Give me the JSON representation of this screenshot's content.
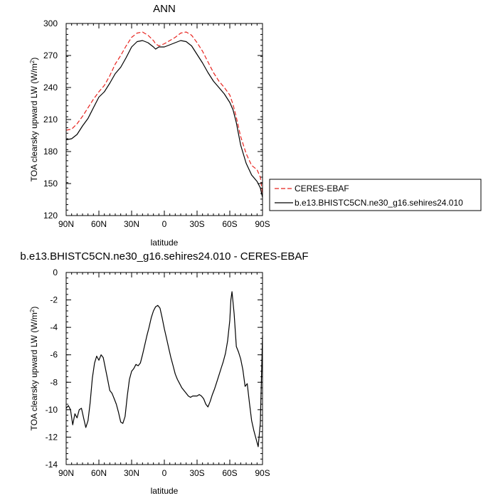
{
  "chart_data": [
    {
      "type": "line",
      "title": "ANN",
      "xlabel": "latitude",
      "ylabel": "TOA clearsky upward LW (W/m²)",
      "xlim": [
        90,
        -90
      ],
      "ylim": [
        120,
        300
      ],
      "x_ticks": [
        90,
        60,
        30,
        0,
        -30,
        -60,
        -90
      ],
      "x_tick_labels": [
        "90N",
        "60N",
        "30N",
        "0",
        "30S",
        "60S",
        "90S"
      ],
      "y_ticks": [
        120,
        150,
        180,
        210,
        240,
        270,
        300
      ],
      "y_tick_labels": [
        "120",
        "150",
        "180",
        "210",
        "240",
        "270",
        "300"
      ],
      "legend": "right",
      "series": [
        {
          "name": "CERES-EBAF",
          "color": "#e8231e",
          "dash": "dashed",
          "x": [
            90,
            85,
            80,
            75,
            70,
            65,
            60,
            55,
            50,
            45,
            40,
            35,
            30,
            25,
            20,
            15,
            10,
            8,
            5,
            0,
            -5,
            -10,
            -15,
            -20,
            -25,
            -30,
            -35,
            -40,
            -45,
            -50,
            -55,
            -60,
            -63,
            -66,
            -70,
            -75,
            -80,
            -85,
            -88,
            -90
          ],
          "y": [
            200,
            201,
            206,
            213,
            221,
            229,
            236,
            242,
            251,
            262,
            270,
            279,
            287,
            291,
            292,
            289,
            284,
            281,
            279,
            281,
            284,
            287,
            291,
            292,
            289,
            282,
            274,
            264,
            254,
            246,
            240,
            233,
            224,
            212,
            194,
            178,
            167,
            163,
            156,
            140
          ]
        },
        {
          "name": "b.e13.BHISTC5CN.ne30_g16.sehires24.010",
          "color": "#000000",
          "dash": "solid",
          "x": [
            90,
            85,
            80,
            75,
            70,
            65,
            60,
            55,
            50,
            45,
            40,
            35,
            30,
            25,
            20,
            15,
            10,
            8,
            5,
            0,
            -5,
            -10,
            -15,
            -20,
            -25,
            -30,
            -35,
            -40,
            -45,
            -50,
            -55,
            -60,
            -63,
            -66,
            -70,
            -75,
            -80,
            -85,
            -88,
            -90
          ],
          "y": [
            191,
            192,
            196,
            204,
            211,
            221,
            231,
            236,
            244,
            253,
            259,
            268,
            278,
            283,
            284,
            282,
            278,
            276,
            278,
            278,
            280,
            282,
            284,
            283,
            279,
            271,
            263,
            254,
            246,
            240,
            234,
            226,
            219,
            207,
            186,
            169,
            158,
            152,
            146,
            137
          ]
        }
      ]
    },
    {
      "type": "line",
      "title": "b.e13.BHISTC5CN.ne30_g16.sehires24.010 - CERES-EBAF",
      "xlabel": "latitude",
      "ylabel": "TOA clearsky upward LW (W/m²)",
      "xlim": [
        90,
        -90
      ],
      "ylim": [
        -14,
        0
      ],
      "x_ticks": [
        90,
        60,
        30,
        0,
        -30,
        -60,
        -90
      ],
      "x_tick_labels": [
        "90N",
        "60N",
        "30N",
        "0",
        "30S",
        "60S",
        "90S"
      ],
      "y_ticks": [
        -14,
        -12,
        -10,
        -8,
        -6,
        -4,
        -2,
        0
      ],
      "y_tick_labels": [
        "-14",
        "-12",
        "-10",
        "-8",
        "-6",
        "-4",
        "-2",
        "0"
      ],
      "series": [
        {
          "color": "#000000",
          "dash": "solid",
          "x": [
            90,
            88,
            86,
            84,
            82,
            80,
            78,
            76,
            74,
            72,
            70,
            68,
            66,
            64,
            62,
            60,
            58,
            56,
            54,
            52,
            50,
            48,
            46,
            44,
            42,
            40,
            38,
            36,
            34,
            32,
            30,
            28,
            26,
            24,
            22,
            20,
            18,
            16,
            14,
            12,
            10,
            8,
            6,
            4,
            2,
            0,
            -2,
            -4,
            -6,
            -8,
            -10,
            -12,
            -14,
            -16,
            -18,
            -20,
            -22,
            -24,
            -26,
            -28,
            -30,
            -32,
            -34,
            -36,
            -38,
            -40,
            -42,
            -44,
            -46,
            -48,
            -50,
            -52,
            -54,
            -56,
            -58,
            -60,
            -61,
            -62,
            -64,
            -66,
            -68,
            -70,
            -72,
            -74,
            -76,
            -78,
            -80,
            -82,
            -84,
            -86,
            -88,
            -90
          ],
          "y": [
            -9.9,
            -9.7,
            -10.0,
            -11.1,
            -10.3,
            -10.6,
            -10.0,
            -9.9,
            -10.6,
            -11.3,
            -10.8,
            -9.5,
            -7.7,
            -6.6,
            -6.1,
            -6.4,
            -6.0,
            -6.2,
            -7.0,
            -7.8,
            -8.6,
            -8.8,
            -9.2,
            -9.6,
            -10.2,
            -10.9,
            -11.0,
            -10.5,
            -9.0,
            -7.8,
            -7.2,
            -7.0,
            -6.7,
            -6.8,
            -6.6,
            -6.0,
            -5.3,
            -4.6,
            -4.0,
            -3.3,
            -2.8,
            -2.5,
            -2.4,
            -2.6,
            -3.3,
            -4.1,
            -4.8,
            -5.5,
            -6.2,
            -6.8,
            -7.4,
            -7.8,
            -8.1,
            -8.4,
            -8.6,
            -8.8,
            -9.0,
            -9.1,
            -9.0,
            -9.0,
            -9.0,
            -8.9,
            -9.0,
            -9.2,
            -9.6,
            -9.8,
            -9.4,
            -8.9,
            -8.5,
            -8.0,
            -7.5,
            -7.0,
            -6.5,
            -5.9,
            -5.0,
            -3.5,
            -2.0,
            -1.4,
            -3.0,
            -5.4,
            -5.8,
            -6.3,
            -7.1,
            -8.3,
            -8.1,
            -9.5,
            -10.8,
            -11.5,
            -12.1,
            -12.7,
            -11.0,
            -4.6
          ]
        }
      ]
    }
  ]
}
